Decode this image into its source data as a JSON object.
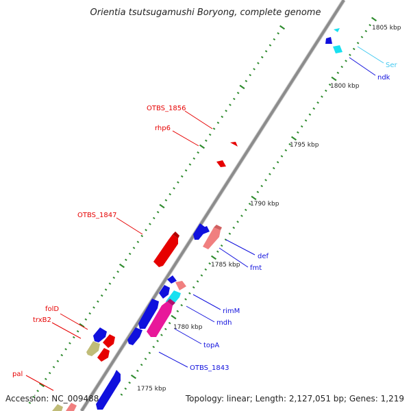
{
  "title": "Orientia tsutsugamushi Boryong, complete genome",
  "footer": {
    "accession": "Accession: NC_009488",
    "topology": "Topology: linear; Length: 2,127,051 bp; Genes: 1,219"
  },
  "colors": {
    "backbone": "#8c8c8c",
    "tick": "#2e8b2e",
    "red": "#e60000",
    "blue": "#1010dd",
    "cyan": "#18e0f0",
    "cyan_label": "#40c8f0",
    "pink": "#f07f7f",
    "magenta": "#e8189a",
    "olive": "#c0bc78"
  },
  "kbp_labels": [
    "1805 kbp",
    "1800 kbp",
    "1795 kbp",
    "1790 kbp",
    "1785 kbp",
    "1780 kbp",
    "1775 kbp"
  ],
  "gene_labels": {
    "ser": "Ser",
    "ndk": "ndk",
    "otbs1856": "OTBS_1856",
    "rhp6": "rhp6",
    "otbs1847": "OTBS_1847",
    "def": "def",
    "fmt": "fmt",
    "rimm": "rimM",
    "mdh": "mdh",
    "topa": "topA",
    "otbs1843": "OTBS_1843",
    "fold": "folD",
    "trxb2": "trxB2",
    "pal": "pal"
  }
}
